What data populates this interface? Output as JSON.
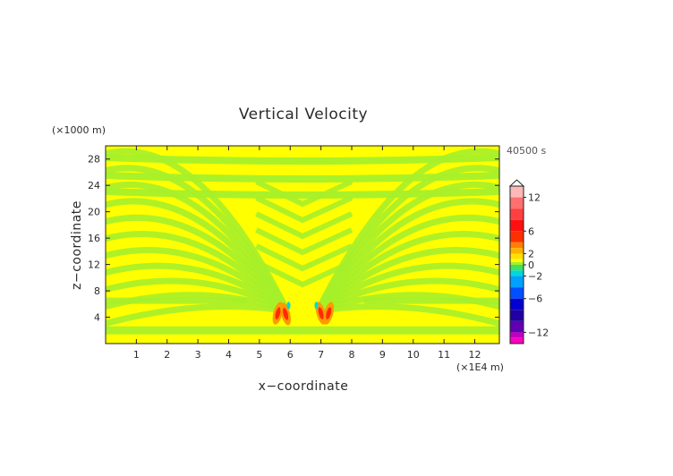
{
  "chart_data": {
    "type": "heatmap",
    "title": "Vertical Velocity",
    "xlabel": "x−coordinate",
    "ylabel": "z−coordinate",
    "x_unit": "(×1E4 m)",
    "y_unit": "(×1000 m)",
    "time_label": "40500 s",
    "x_ticks": [
      "1",
      "2",
      "3",
      "4",
      "5",
      "6",
      "7",
      "8",
      "9",
      "10",
      "11",
      "12"
    ],
    "y_ticks": [
      "4",
      "8",
      "12",
      "16",
      "20",
      "24",
      "28"
    ],
    "xlim": [
      0,
      12.8
    ],
    "ylim": [
      0,
      30
    ],
    "colorbar": {
      "ticks": [
        "12",
        "6",
        "2",
        "0",
        "−2",
        "−6",
        "−12"
      ],
      "values": [
        12,
        6,
        2,
        0,
        -2,
        -6,
        -12
      ],
      "range": [
        -14,
        14
      ]
    },
    "colors": {
      "yellow": "#ffff00",
      "green": "#a6f02a",
      "orange": "#ff9a00",
      "red": "#ff2a00",
      "cyan": "#00d8d8"
    }
  }
}
